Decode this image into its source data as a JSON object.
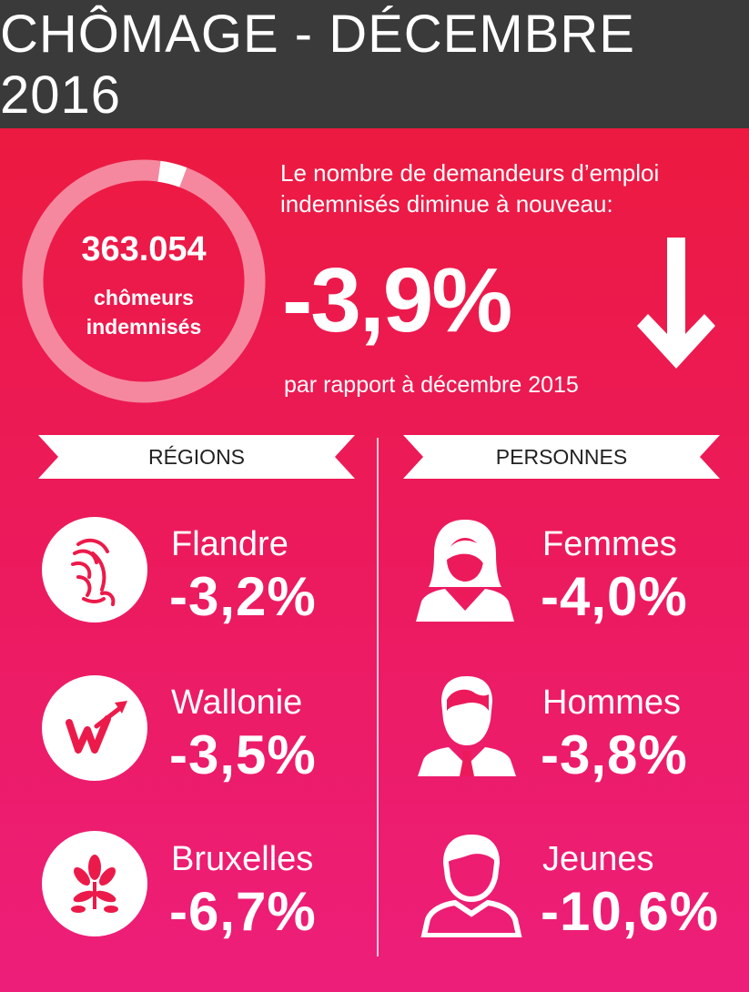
{
  "header": {
    "title": "CHÔMAGE - DÉCEMBRE 2016"
  },
  "summary": {
    "total": "363.054",
    "total_label_1": "chômeurs",
    "total_label_2": "indemnisés",
    "intro_1": "Le nombre de demandeurs d’emploi",
    "intro_2": "indemnisés diminue à nouveau:",
    "change": "-3,9%",
    "compare": "par rapport à décembre 2015"
  },
  "regions": {
    "heading": "RÉGIONS",
    "items": [
      {
        "name": "Flandre",
        "value": "-3,2%",
        "icon": "flemish-lion-icon"
      },
      {
        "name": "Wallonie",
        "value": "-3,5%",
        "icon": "wallonia-w-icon"
      },
      {
        "name": "Bruxelles",
        "value": "-6,7%",
        "icon": "brussels-iris-icon"
      }
    ]
  },
  "people": {
    "heading": "PERSONNES",
    "items": [
      {
        "name": "Femmes",
        "value": "-4,0%",
        "icon": "woman-icon"
      },
      {
        "name": "Hommes",
        "value": "-3,8%",
        "icon": "man-icon"
      },
      {
        "name": "Jeunes",
        "value": "-10,6%",
        "icon": "youth-icon"
      }
    ]
  },
  "colors": {
    "header_bg": "#3a3a3a",
    "accent_top": "#ec1a40",
    "accent_bottom": "#ed1e7a"
  }
}
